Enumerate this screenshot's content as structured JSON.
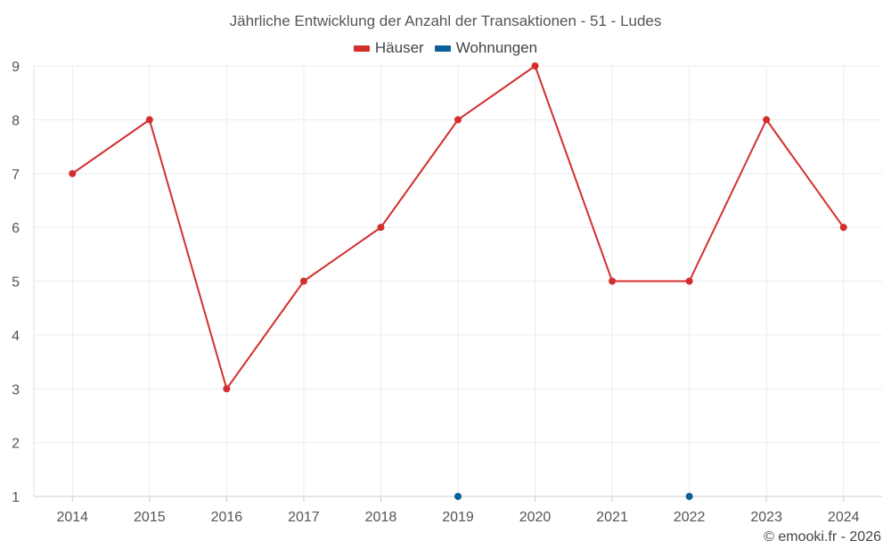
{
  "chart_data": {
    "type": "line",
    "title": "Jährliche Entwicklung der Anzahl der Transaktionen - 51 - Ludes",
    "xlabel": "",
    "ylabel": "",
    "x": [
      2014,
      2015,
      2016,
      2017,
      2018,
      2019,
      2020,
      2021,
      2022,
      2023,
      2024
    ],
    "yticks": [
      1,
      2,
      3,
      4,
      5,
      6,
      7,
      8,
      9
    ],
    "ylim": [
      1,
      9
    ],
    "grid": true,
    "legend_position": "top-center",
    "series": [
      {
        "name": "Häuser",
        "color": "#d32f2f",
        "values": [
          7,
          8,
          3,
          5,
          6,
          8,
          9,
          5,
          5,
          8,
          6
        ]
      },
      {
        "name": "Wohnungen",
        "color": "#0b5f9b",
        "values": [
          null,
          null,
          null,
          null,
          null,
          1,
          null,
          null,
          1,
          null,
          null
        ]
      }
    ]
  },
  "credit": "© emooki.fr - 2026"
}
